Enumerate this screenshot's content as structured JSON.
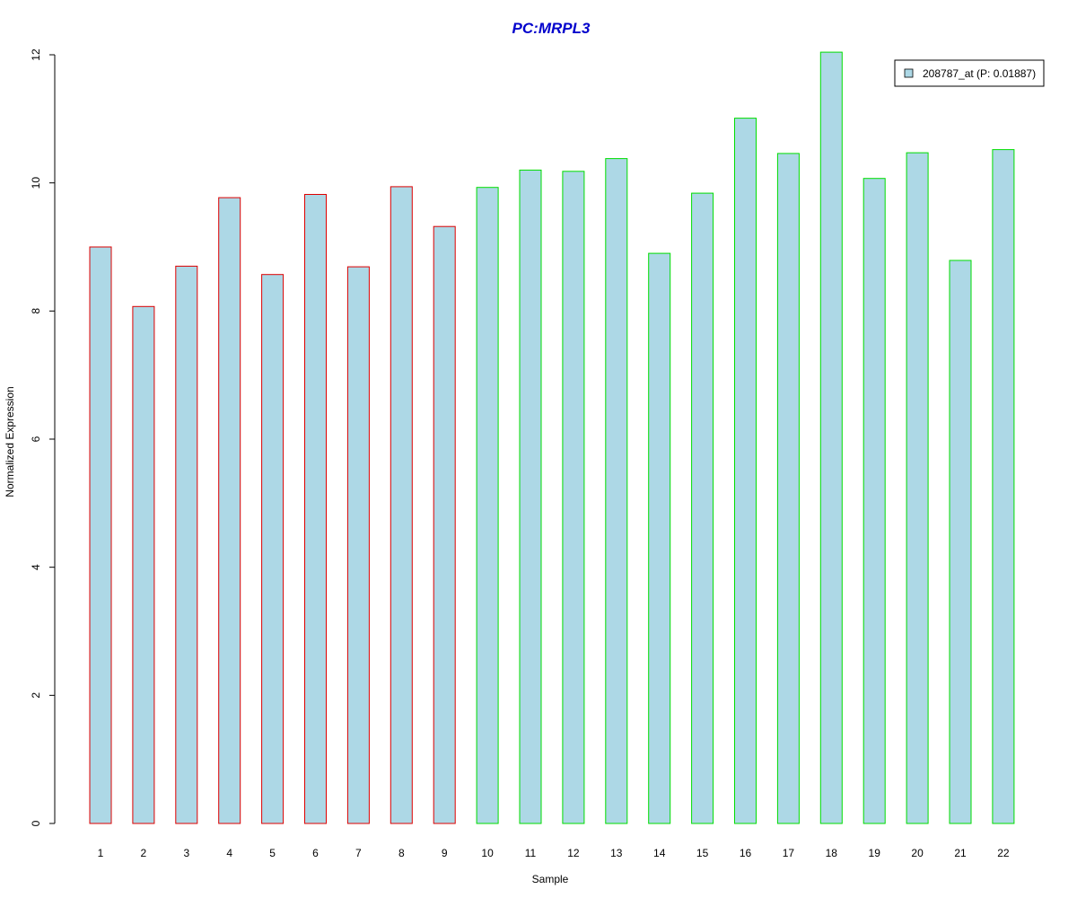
{
  "chart_data": {
    "type": "bar",
    "title": "PC:MRPL3",
    "xlabel": "Sample",
    "ylabel": "Normalized Expression",
    "ylim": [
      0,
      12
    ],
    "yticks": [
      0,
      2,
      4,
      6,
      8,
      10,
      12
    ],
    "categories": [
      "1",
      "2",
      "3",
      "4",
      "5",
      "6",
      "7",
      "8",
      "9",
      "10",
      "11",
      "12",
      "13",
      "14",
      "15",
      "16",
      "17",
      "18",
      "19",
      "20",
      "21",
      "22"
    ],
    "series": [
      {
        "name": "208787_at (P: 0.01887)",
        "values": [
          9.0,
          8.07,
          8.7,
          9.77,
          8.57,
          9.82,
          8.69,
          9.94,
          9.32,
          9.93,
          10.2,
          10.18,
          10.38,
          8.9,
          9.84,
          11.01,
          10.46,
          12.04,
          10.07,
          10.47,
          8.79,
          10.52
        ]
      }
    ],
    "bar_fill": "#add8e6",
    "bar_borders": [
      "#dd0000",
      "#dd0000",
      "#dd0000",
      "#dd0000",
      "#dd0000",
      "#dd0000",
      "#dd0000",
      "#dd0000",
      "#dd0000",
      "#00dd00",
      "#00dd00",
      "#00dd00",
      "#00dd00",
      "#00dd00",
      "#00dd00",
      "#00dd00",
      "#00dd00",
      "#00dd00",
      "#00dd00",
      "#00dd00",
      "#00dd00",
      "#00dd00"
    ],
    "title_color": "#0000cc",
    "legend_position": "top-right",
    "grid": false
  }
}
